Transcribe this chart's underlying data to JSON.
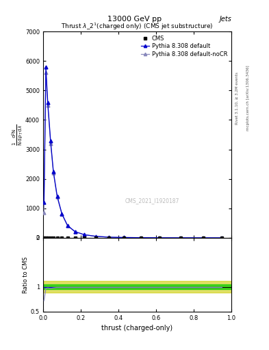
{
  "title": "13000 GeV pp",
  "title_right": "Jets",
  "watermark": "CMS_2021_I1920187",
  "right_label_top": "Rivet 3.1.10, ≥ 3.2M events",
  "right_label_bot": "mcplots.cern.ch [arXiv:1306.3436]",
  "cms_label": "CMS",
  "pythia_label": "Pythia 8.308 default",
  "pythia_nocr_label": "Pythia 8.308 default-noCR",
  "xlim": [
    0,
    1
  ],
  "ylim_main": [
    0,
    7000
  ],
  "ylim_ratio": [
    0.5,
    2.0
  ],
  "main_yticks": [
    0,
    1000,
    2000,
    3000,
    4000,
    5000,
    6000,
    7000
  ],
  "ratio_yticks": [
    0.5,
    1,
    2
  ],
  "color_blue": "#0000cc",
  "color_lightblue": "#8888bb",
  "color_cms": "#000000",
  "color_green": "#00cc00",
  "color_yellow": "#cccc00",
  "color_ratio_line": "#000000",
  "bg_color": "#ffffff",
  "thrust_x": [
    0.005,
    0.015,
    0.025,
    0.04,
    0.055,
    0.075,
    0.1,
    0.13,
    0.17,
    0.22,
    0.28,
    0.35,
    0.43,
    0.52,
    0.62,
    0.73,
    0.85,
    0.95
  ],
  "pythia_y": [
    1200,
    5800,
    4600,
    3300,
    2250,
    1420,
    820,
    420,
    210,
    105,
    52,
    22,
    11,
    5.5,
    2.2,
    1.1,
    0.6,
    0.2
  ],
  "pythia_nocr_y": [
    850,
    5600,
    4500,
    3200,
    2200,
    1380,
    800,
    405,
    205,
    102,
    50,
    21,
    10.5,
    5.2,
    2.1,
    1.05,
    0.55,
    0.19
  ],
  "cms_x": [
    0.005,
    0.015,
    0.025,
    0.04,
    0.055,
    0.075,
    0.1,
    0.13,
    0.17,
    0.22,
    0.28,
    0.35,
    0.43,
    0.52,
    0.62,
    0.73,
    0.85,
    0.95
  ],
  "cms_y": [
    0,
    0,
    0,
    0,
    0,
    0,
    0,
    0,
    0,
    0,
    0,
    0,
    0,
    0,
    0,
    0,
    0,
    0
  ],
  "ratio_green_lo": 0.95,
  "ratio_green_hi": 1.05,
  "ratio_yellow_lo": 0.88,
  "ratio_yellow_hi": 1.12
}
